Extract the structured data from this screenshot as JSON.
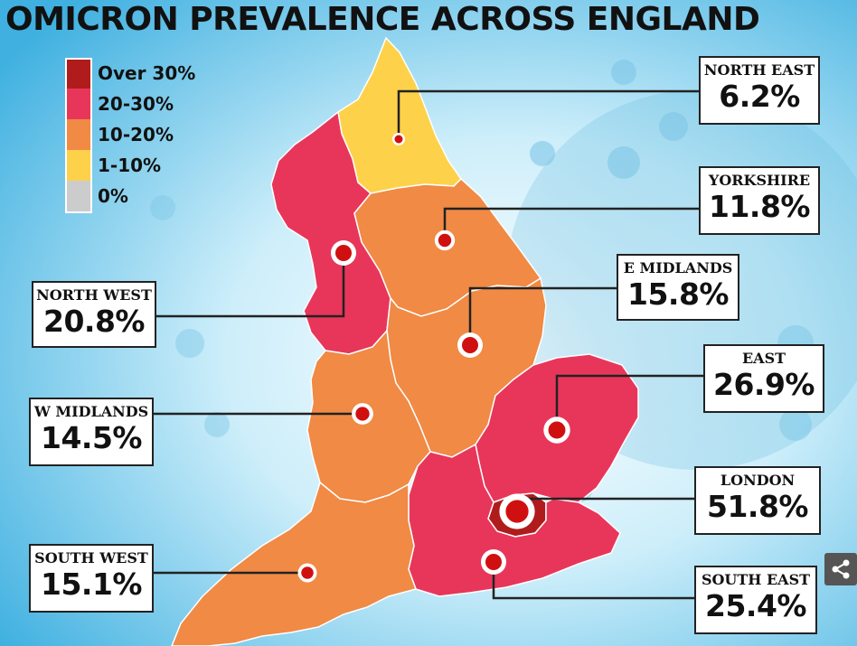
{
  "title": "OMICRON PREVALENCE ACROSS ENGLAND",
  "legend": [
    {
      "label": "Over 30%",
      "color": "#b01c1c"
    },
    {
      "label": "20-30%",
      "color": "#e8365a"
    },
    {
      "label": "10-20%",
      "color": "#f08a45"
    },
    {
      "label": "1-10%",
      "color": "#fdd24a"
    },
    {
      "label": "0%",
      "color": "#cccccc"
    }
  ],
  "regions": [
    {
      "id": "north-east",
      "name": "NORTH EAST",
      "value": "6.2%",
      "prevalence": 6.2,
      "color": "#fdd24a"
    },
    {
      "id": "yorkshire",
      "name": "YORKSHIRE",
      "value": "11.8%",
      "prevalence": 11.8,
      "color": "#f08a45"
    },
    {
      "id": "east-midlands",
      "name": "E MIDLANDS",
      "value": "15.8%",
      "prevalence": 15.8,
      "color": "#f08a45"
    },
    {
      "id": "east",
      "name": "EAST",
      "value": "26.9%",
      "prevalence": 26.9,
      "color": "#e8365a"
    },
    {
      "id": "london",
      "name": "LONDON",
      "value": "51.8%",
      "prevalence": 51.8,
      "color": "#b01c1c"
    },
    {
      "id": "south-east",
      "name": "SOUTH EAST",
      "value": "25.4%",
      "prevalence": 25.4,
      "color": "#e8365a"
    },
    {
      "id": "north-west",
      "name": "NORTH WEST",
      "value": "20.8%",
      "prevalence": 20.8,
      "color": "#e8365a"
    },
    {
      "id": "west-midlands",
      "name": "W MIDLANDS",
      "value": "14.5%",
      "prevalence": 14.5,
      "color": "#f08a45"
    },
    {
      "id": "south-west",
      "name": "SOUTH WEST",
      "value": "15.1%",
      "prevalence": 15.1,
      "color": "#f08a45"
    }
  ],
  "icons": {
    "share": "share-icon",
    "marker": "virus-marker-icon"
  }
}
